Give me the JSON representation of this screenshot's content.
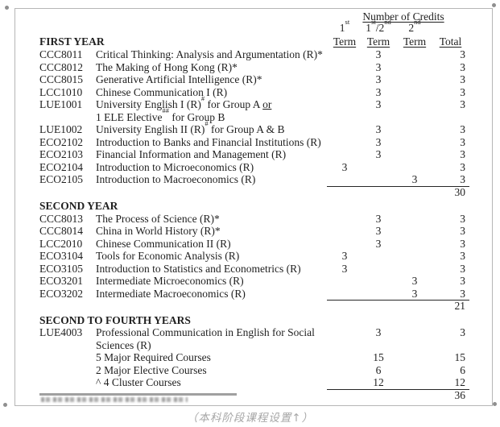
{
  "table": {
    "credits_header": "Number of Credits",
    "term_headers": {
      "sup": [
        "1^{st}",
        "1^{st}/2^{nd}",
        "2^{nd}"
      ],
      "labels": [
        "Term",
        "Term",
        "Term",
        "Total"
      ]
    },
    "sections": [
      {
        "title": "FIRST YEAR",
        "rows": [
          {
            "code": "CCC8011",
            "lines": [
              "Critical Thinking: Analysis and Argumentation (R)*"
            ],
            "t12": "3",
            "total": "3"
          },
          {
            "code": "CCC8012",
            "lines": [
              "The Making of Hong Kong (R)*"
            ],
            "t12": "3",
            "total": "3"
          },
          {
            "code": "CCC8015",
            "lines": [
              "Generative Artificial Intelligence (R)*"
            ],
            "t12": "3",
            "total": "3"
          },
          {
            "code": "LCC1010",
            "lines": [
              "Chinese Communication I (R)"
            ],
            "t12": "3",
            "total": "3"
          },
          {
            "code": "LUE1001",
            "lines": [
              "University English I (R)^{#} for Group A _{or}",
              "1 ELE Elective^{##} for Group B"
            ],
            "t12": "3",
            "total": "3"
          },
          {
            "code": "LUE1002",
            "lines": [
              "University English II (R)^{#} for Group A & B"
            ],
            "t12": "3",
            "total": "3"
          },
          {
            "code": "ECO2102",
            "lines": [
              "Introduction to Banks and Financial Institutions (R)"
            ],
            "t12": "3",
            "total": "3"
          },
          {
            "code": "ECO2103",
            "lines": [
              "Financial Information and Management (R)"
            ],
            "t12": "3",
            "total": "3"
          },
          {
            "code": "ECO2104",
            "lines": [
              "Introduction to Microeconomics (R)"
            ],
            "t1": "3",
            "total": "3"
          },
          {
            "code": "ECO2105",
            "lines": [
              "Introduction to Macroeconomics (R)"
            ],
            "t2": "3",
            "total": "3"
          }
        ],
        "subtotal": "30"
      },
      {
        "title": "SECOND YEAR",
        "rows": [
          {
            "code": "CCC8013",
            "lines": [
              "The Process of Science (R)*"
            ],
            "t12": "3",
            "total": "3"
          },
          {
            "code": "CCC8014",
            "lines": [
              "China in World History (R)*"
            ],
            "t12": "3",
            "total": "3"
          },
          {
            "code": "LCC2010",
            "lines": [
              "Chinese Communication II (R)"
            ],
            "t12": "3",
            "total": "3"
          },
          {
            "code": "ECO3104",
            "lines": [
              "Tools for Economic Analysis (R)"
            ],
            "t1": "3",
            "total": "3"
          },
          {
            "code": "ECO3105",
            "lines": [
              "Introduction to Statistics and Econometrics (R)"
            ],
            "t1": "3",
            "total": "3"
          },
          {
            "code": "ECO3201",
            "lines": [
              "Intermediate Microeconomics (R)"
            ],
            "t2": "3",
            "total": "3"
          },
          {
            "code": "ECO3202",
            "lines": [
              "Intermediate Macroeconomics (R)"
            ],
            "t2": "3",
            "total": "3"
          }
        ],
        "subtotal": "21"
      },
      {
        "title": "SECOND TO FOURTH YEARS",
        "rows": [
          {
            "code": "LUE4003",
            "lines": [
              "Professional Communication in English for Social",
              "Sciences (R)"
            ],
            "t12": "3",
            "total": "3"
          },
          {
            "code": "",
            "lines": [
              "5 Major Required Courses"
            ],
            "t12": "15",
            "total": "15"
          },
          {
            "code": "",
            "lines": [
              "2 Major Elective Courses"
            ],
            "t12": "6",
            "total": "6"
          },
          {
            "code": "",
            "lines": [
              "^ 4 Cluster Courses"
            ],
            "t12": "12",
            "total": "12"
          }
        ],
        "subtotal": "36"
      }
    ]
  },
  "caption": "（本科阶段课程设置↑）"
}
